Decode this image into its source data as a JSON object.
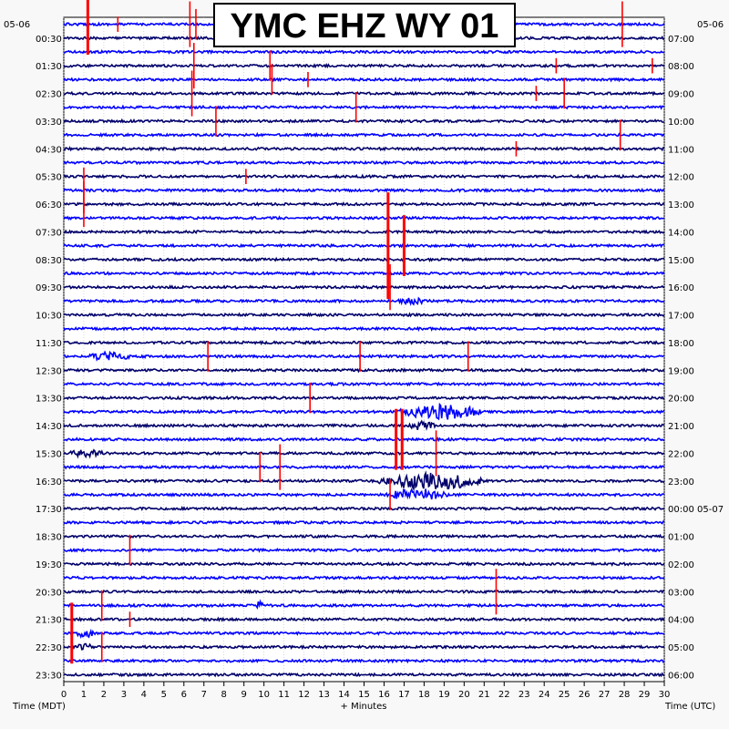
{
  "chart_data": {
    "type": "line",
    "title": "YMC EHZ WY 01",
    "date_left": "05-06",
    "date_right": "05-06",
    "xlabel": "+ Minutes",
    "xlabel_left": "Time (MDT)",
    "xlabel_right": "Time (UTC)",
    "xlim": [
      0,
      30
    ],
    "x_ticks": [
      "0",
      "1",
      "2",
      "3",
      "4",
      "5",
      "6",
      "7",
      "8",
      "9",
      "10",
      "11",
      "12",
      "13",
      "14",
      "15",
      "16",
      "17",
      "18",
      "19",
      "20",
      "21",
      "22",
      "23",
      "24",
      "25",
      "26",
      "27",
      "28",
      "29",
      "30"
    ],
    "num_traces": 48,
    "trace_colors": [
      "#0000ff",
      "#00006b"
    ],
    "event_color": "#ff0000",
    "left_labels": [
      "00:30",
      "01:30",
      "02:30",
      "03:30",
      "04:30",
      "05:30",
      "06:30",
      "07:30",
      "08:30",
      "09:30",
      "10:30",
      "11:30",
      "12:30",
      "13:30",
      "14:30",
      "15:30",
      "16:30",
      "17:30",
      "18:30",
      "19:30",
      "20:30",
      "21:30",
      "22:30",
      "23:30"
    ],
    "right_labels": [
      "07:00",
      "08:00",
      "09:00",
      "10:00",
      "11:00",
      "12:00",
      "13:00",
      "14:00",
      "15:00",
      "16:00",
      "17:00",
      "18:00",
      "19:00",
      "20:00",
      "21:00",
      "22:00",
      "23:00",
      "00:00 05-07",
      "01:00",
      "02:00",
      "03:00",
      "04:00",
      "05:00",
      "06:00"
    ],
    "events": [
      {
        "trace": 0,
        "minute": 1.2,
        "size": 4
      },
      {
        "trace": 0,
        "minute": 6.3,
        "size": 3
      },
      {
        "trace": 0,
        "minute": 6.6,
        "size": 2
      },
      {
        "trace": 0,
        "minute": 2.7,
        "size": 1
      },
      {
        "trace": 0,
        "minute": 27.9,
        "size": 3
      },
      {
        "trace": 1,
        "minute": 10.5,
        "size": 1
      },
      {
        "trace": 3,
        "minute": 6.5,
        "size": 3
      },
      {
        "trace": 3,
        "minute": 10.3,
        "size": 2
      },
      {
        "trace": 3,
        "minute": 24.6,
        "size": 1
      },
      {
        "trace": 3,
        "minute": 29.4,
        "size": 1
      },
      {
        "trace": 4,
        "minute": 10.4,
        "size": 2
      },
      {
        "trace": 4,
        "minute": 12.2,
        "size": 1
      },
      {
        "trace": 5,
        "minute": 6.4,
        "size": 3
      },
      {
        "trace": 5,
        "minute": 23.6,
        "size": 1
      },
      {
        "trace": 5,
        "minute": 25.0,
        "size": 2
      },
      {
        "trace": 6,
        "minute": 14.6,
        "size": 2
      },
      {
        "trace": 7,
        "minute": 7.6,
        "size": 2
      },
      {
        "trace": 8,
        "minute": 27.8,
        "size": 2
      },
      {
        "trace": 9,
        "minute": 22.6,
        "size": 1
      },
      {
        "trace": 11,
        "minute": 9.1,
        "size": 1
      },
      {
        "trace": 12,
        "minute": 1.0,
        "size": 3
      },
      {
        "trace": 13,
        "minute": 1.0,
        "size": 3
      },
      {
        "trace": 16,
        "minute": 16.2,
        "size": 7
      },
      {
        "trace": 16,
        "minute": 17.0,
        "size": 4
      },
      {
        "trace": 19,
        "minute": 16.3,
        "size": 3
      },
      {
        "trace": 24,
        "minute": 7.2,
        "size": 2
      },
      {
        "trace": 24,
        "minute": 14.8,
        "size": 2
      },
      {
        "trace": 24,
        "minute": 20.2,
        "size": 2
      },
      {
        "trace": 27,
        "minute": 12.3,
        "size": 2
      },
      {
        "trace": 30,
        "minute": 16.6,
        "size": 4
      },
      {
        "trace": 30,
        "minute": 16.9,
        "size": 4
      },
      {
        "trace": 31,
        "minute": 18.6,
        "size": 3
      },
      {
        "trace": 32,
        "minute": 9.8,
        "size": 2
      },
      {
        "trace": 32,
        "minute": 10.8,
        "size": 3
      },
      {
        "trace": 34,
        "minute": 16.3,
        "size": 2
      },
      {
        "trace": 38,
        "minute": 3.3,
        "size": 2
      },
      {
        "trace": 41,
        "minute": 21.6,
        "size": 3
      },
      {
        "trace": 42,
        "minute": 1.9,
        "size": 2
      },
      {
        "trace": 43,
        "minute": 3.3,
        "size": 1
      },
      {
        "trace": 44,
        "minute": 0.4,
        "size": 4
      },
      {
        "trace": 45,
        "minute": 1.9,
        "size": 2
      }
    ],
    "bursts": [
      {
        "trace": 24,
        "start": 1.0,
        "end": 5.5,
        "amp": 5
      },
      {
        "trace": 28,
        "start": 16.5,
        "end": 24.5,
        "amp": 9
      },
      {
        "trace": 29,
        "start": 17.0,
        "end": 20.0,
        "amp": 5
      },
      {
        "trace": 31,
        "start": 0.0,
        "end": 4.0,
        "amp": 4
      },
      {
        "trace": 33,
        "start": 15.5,
        "end": 25.5,
        "amp": 10
      },
      {
        "trace": 34,
        "start": 16.0,
        "end": 22.0,
        "amp": 7
      },
      {
        "trace": 20,
        "start": 16.5,
        "end": 20.0,
        "amp": 4
      },
      {
        "trace": 42,
        "start": 9.5,
        "end": 10.5,
        "amp": 5
      },
      {
        "trace": 44,
        "start": 0.5,
        "end": 2.5,
        "amp": 5
      },
      {
        "trace": 45,
        "start": 0.5,
        "end": 2.5,
        "amp": 4
      }
    ]
  }
}
